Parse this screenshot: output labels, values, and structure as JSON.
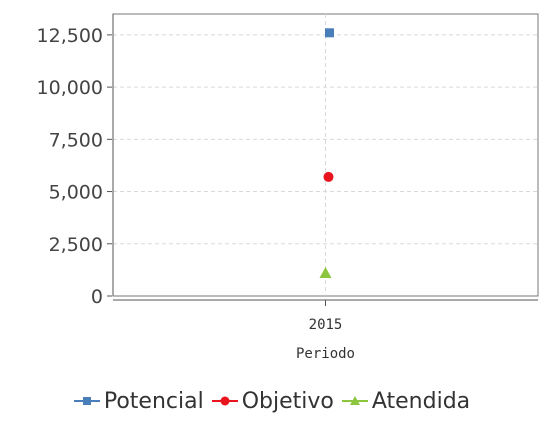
{
  "chart_data": {
    "type": "scatter",
    "categories": [
      "2015"
    ],
    "xlabel": "Periodo",
    "ylabel": "",
    "ylim": [
      0,
      13500
    ],
    "yticks": [
      0,
      2500,
      5000,
      7500,
      10000,
      12500
    ],
    "ytick_labels": [
      "0",
      "2,500",
      "5,000",
      "7,500",
      "10,000",
      "12,500"
    ],
    "grid": true,
    "legend_position": "bottom",
    "series": [
      {
        "name": "Potencial",
        "values": [
          12600
        ],
        "color": "#4a7ebb",
        "marker": "square"
      },
      {
        "name": "Objetivo",
        "values": [
          5700
        ],
        "color": "#e8141e",
        "marker": "circle"
      },
      {
        "name": "Atendida",
        "values": [
          1100
        ],
        "color": "#8cc63e",
        "marker": "triangle"
      }
    ]
  }
}
